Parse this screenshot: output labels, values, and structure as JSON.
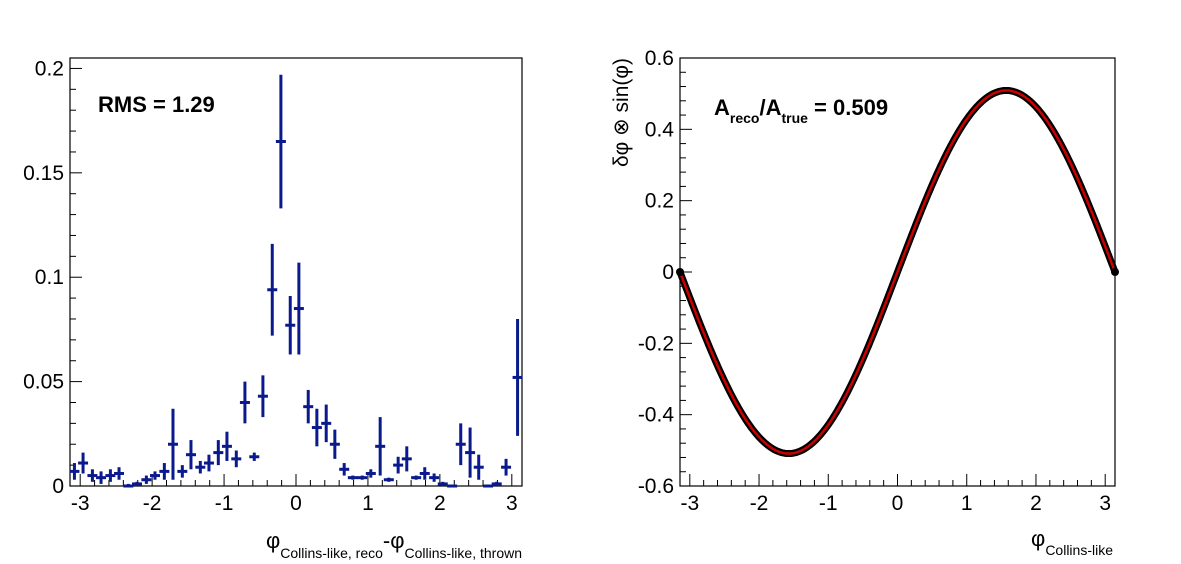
{
  "chart_data": [
    {
      "type": "scatter",
      "style": "histogram-points-with-error-bars",
      "annotation": "RMS = 1.29",
      "xlabel_symbol": "φ",
      "xlabel_sub1": "Collins-like, reco",
      "xlabel_dash": "-φ",
      "xlabel_sub2": "Collins-like, thrown",
      "ylabel": "",
      "xlim": [
        -3.1416,
        3.1416
      ],
      "ylim": [
        0,
        0.205
      ],
      "xticks": [
        -3,
        -2,
        -1,
        0,
        1,
        2,
        3
      ],
      "xtick_labels": [
        "-3",
        "-2",
        "-1",
        "0",
        "1",
        "2",
        "3"
      ],
      "yticks": [
        0,
        0.05,
        0.1,
        0.15,
        0.2
      ],
      "ytick_labels": [
        "0",
        "0.05",
        "0.1",
        "0.15",
        "0.2"
      ],
      "grid": false,
      "color": "#0a1a8c",
      "series": [
        {
          "x": [
            -3.08,
            -2.96,
            -2.83,
            -2.71,
            -2.58,
            -2.46,
            -2.33,
            -2.21,
            -2.08,
            -1.96,
            -1.83,
            -1.71,
            -1.58,
            -1.46,
            -1.33,
            -1.21,
            -1.08,
            -0.96,
            -0.83,
            -0.71,
            -0.58,
            -0.46,
            -0.33,
            -0.21,
            -0.08,
            0.04,
            0.17,
            0.29,
            0.42,
            0.54,
            0.67,
            0.79,
            0.92,
            1.04,
            1.17,
            1.29,
            1.42,
            1.54,
            1.67,
            1.79,
            1.92,
            2.04,
            2.17,
            2.29,
            2.42,
            2.54,
            2.67,
            2.79,
            2.92,
            3.08
          ],
          "y": [
            0.007,
            0.011,
            0.005,
            0.004,
            0.005,
            0.006,
            0.0,
            0.001,
            0.003,
            0.005,
            0.007,
            0.02,
            0.007,
            0.015,
            0.009,
            0.011,
            0.016,
            0.019,
            0.013,
            0.04,
            0.014,
            0.043,
            0.094,
            0.165,
            0.077,
            0.085,
            0.038,
            0.028,
            0.03,
            0.02,
            0.008,
            0.004,
            0.004,
            0.006,
            0.019,
            0.003,
            0.01,
            0.013,
            0.004,
            0.006,
            0.004,
            0.001,
            0.0,
            0.02,
            0.016,
            0.009,
            0.0,
            0.001,
            0.009,
            0.052
          ],
          "yerr": [
            0.004,
            0.005,
            0.003,
            0.003,
            0.003,
            0.003,
            0.001,
            0.001,
            0.002,
            0.002,
            0.004,
            0.017,
            0.003,
            0.007,
            0.003,
            0.004,
            0.006,
            0.007,
            0.004,
            0.01,
            0.002,
            0.01,
            0.022,
            0.032,
            0.014,
            0.022,
            0.008,
            0.009,
            0.009,
            0.007,
            0.003,
            0.001,
            0.001,
            0.002,
            0.014,
            0.001,
            0.004,
            0.006,
            0.001,
            0.003,
            0.002,
            0.001,
            0.0,
            0.01,
            0.012,
            0.006,
            0.0,
            0.001,
            0.004,
            0.028
          ]
        }
      ]
    },
    {
      "type": "line",
      "annotation_main": "A",
      "annotation_sub1": "reco",
      "annotation_slash": "/A",
      "annotation_sub2": "true",
      "annotation_value": " = 0.509",
      "xlabel_symbol": "φ",
      "xlabel_sub": "Collins-like",
      "ylabel": "δφ ⊗ sin(φ)",
      "xlim": [
        -3.1416,
        3.1416
      ],
      "ylim": [
        -0.6,
        0.6
      ],
      "xticks": [
        -3,
        -2,
        -1,
        0,
        1,
        2,
        3
      ],
      "xtick_labels": [
        "-3",
        "-2",
        "-1",
        "0",
        "1",
        "2",
        "3"
      ],
      "yticks": [
        -0.6,
        -0.4,
        -0.2,
        0,
        0.2,
        0.4,
        0.6
      ],
      "ytick_labels": [
        "-0.6",
        "-0.4",
        "-0.2",
        "0",
        "0.2",
        "0.4",
        "0.6"
      ],
      "grid": false,
      "series": [
        {
          "function": "0.509*sin(x)",
          "amplitude": 0.509,
          "color": "#000000",
          "style": "dense-markers"
        },
        {
          "function": "0.509*sin(x)",
          "amplitude": 0.509,
          "color": "#cc0000",
          "style": "line"
        }
      ]
    }
  ]
}
